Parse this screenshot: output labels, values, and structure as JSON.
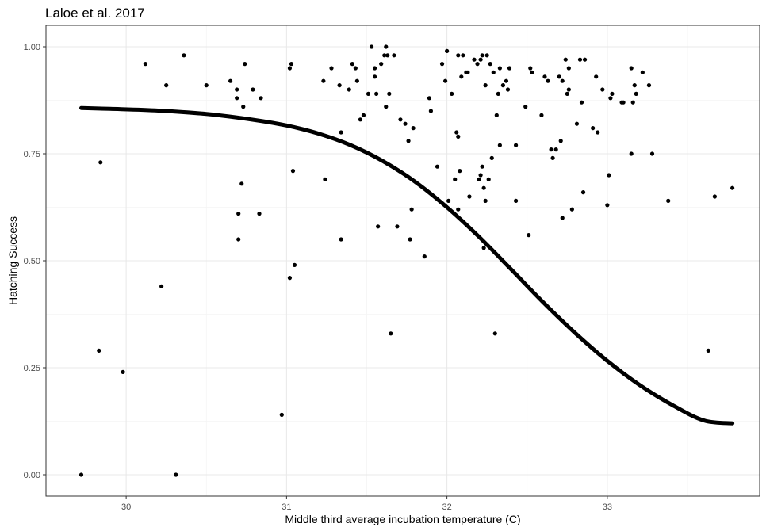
{
  "chart_data": {
    "type": "scatter",
    "title": "Laloe et al. 2017",
    "xlabel": "Middle third average incubation temperature (C)",
    "ylabel": "Hatching Success",
    "xlim": [
      29.5,
      33.95
    ],
    "ylim": [
      -0.05,
      1.05
    ],
    "x_ticks": [
      30,
      31,
      32,
      33
    ],
    "y_ticks": [
      0.0,
      0.25,
      0.5,
      0.75,
      1.0
    ],
    "x_tick_labels": [
      "30",
      "31",
      "32",
      "33"
    ],
    "y_tick_labels": [
      "0.00",
      "0.25",
      "0.50",
      "0.75",
      "1.00"
    ],
    "grid": true,
    "legend": "none",
    "colors": {
      "points": "#000000",
      "curve": "#000000",
      "grid_major": "#e8e8e8",
      "grid_minor": "#f4f4f4",
      "panel_border": "#333333",
      "tick_label": "#4d4d4d"
    },
    "points": [
      {
        "x": 29.72,
        "y": 0.0
      },
      {
        "x": 29.83,
        "y": 0.29
      },
      {
        "x": 29.84,
        "y": 0.73
      },
      {
        "x": 29.98,
        "y": 0.24
      },
      {
        "x": 30.12,
        "y": 0.96
      },
      {
        "x": 30.22,
        "y": 0.44
      },
      {
        "x": 30.25,
        "y": 0.91
      },
      {
        "x": 30.31,
        "y": 0.0
      },
      {
        "x": 30.36,
        "y": 0.98
      },
      {
        "x": 30.5,
        "y": 0.91
      },
      {
        "x": 30.65,
        "y": 0.92
      },
      {
        "x": 30.69,
        "y": 0.9
      },
      {
        "x": 30.69,
        "y": 0.88
      },
      {
        "x": 30.7,
        "y": 0.61
      },
      {
        "x": 30.7,
        "y": 0.55
      },
      {
        "x": 30.72,
        "y": 0.68
      },
      {
        "x": 30.73,
        "y": 0.86
      },
      {
        "x": 30.74,
        "y": 0.96
      },
      {
        "x": 30.79,
        "y": 0.9
      },
      {
        "x": 30.83,
        "y": 0.61
      },
      {
        "x": 30.84,
        "y": 0.88
      },
      {
        "x": 30.97,
        "y": 0.14
      },
      {
        "x": 31.02,
        "y": 0.95
      },
      {
        "x": 31.03,
        "y": 0.96
      },
      {
        "x": 31.02,
        "y": 0.46
      },
      {
        "x": 31.04,
        "y": 0.71
      },
      {
        "x": 31.05,
        "y": 0.49
      },
      {
        "x": 31.23,
        "y": 0.92
      },
      {
        "x": 31.24,
        "y": 0.69
      },
      {
        "x": 31.28,
        "y": 0.95
      },
      {
        "x": 31.33,
        "y": 0.91
      },
      {
        "x": 31.34,
        "y": 0.8
      },
      {
        "x": 31.34,
        "y": 0.55
      },
      {
        "x": 31.39,
        "y": 0.9
      },
      {
        "x": 31.41,
        "y": 0.96
      },
      {
        "x": 31.43,
        "y": 0.95
      },
      {
        "x": 31.44,
        "y": 0.92
      },
      {
        "x": 31.46,
        "y": 0.83
      },
      {
        "x": 31.48,
        "y": 0.84
      },
      {
        "x": 31.51,
        "y": 0.89
      },
      {
        "x": 31.53,
        "y": 1.0
      },
      {
        "x": 31.55,
        "y": 0.93
      },
      {
        "x": 31.55,
        "y": 0.95
      },
      {
        "x": 31.56,
        "y": 0.89
      },
      {
        "x": 31.57,
        "y": 0.58
      },
      {
        "x": 31.59,
        "y": 0.96
      },
      {
        "x": 31.61,
        "y": 0.98
      },
      {
        "x": 31.62,
        "y": 1.0
      },
      {
        "x": 31.62,
        "y": 0.86
      },
      {
        "x": 31.63,
        "y": 0.98
      },
      {
        "x": 31.64,
        "y": 0.89
      },
      {
        "x": 31.65,
        "y": 0.33
      },
      {
        "x": 31.67,
        "y": 0.98
      },
      {
        "x": 31.69,
        "y": 0.58
      },
      {
        "x": 31.71,
        "y": 0.83
      },
      {
        "x": 31.74,
        "y": 0.82
      },
      {
        "x": 31.76,
        "y": 0.78
      },
      {
        "x": 31.77,
        "y": 0.55
      },
      {
        "x": 31.78,
        "y": 0.62
      },
      {
        "x": 31.79,
        "y": 0.81
      },
      {
        "x": 31.86,
        "y": 0.51
      },
      {
        "x": 31.89,
        "y": 0.88
      },
      {
        "x": 31.9,
        "y": 0.85
      },
      {
        "x": 31.94,
        "y": 0.72
      },
      {
        "x": 31.97,
        "y": 0.96
      },
      {
        "x": 31.99,
        "y": 0.92
      },
      {
        "x": 32.0,
        "y": 0.99
      },
      {
        "x": 32.01,
        "y": 0.64
      },
      {
        "x": 32.03,
        "y": 0.89
      },
      {
        "x": 32.05,
        "y": 0.69
      },
      {
        "x": 32.06,
        "y": 0.8
      },
      {
        "x": 32.07,
        "y": 0.79
      },
      {
        "x": 32.07,
        "y": 0.62
      },
      {
        "x": 32.07,
        "y": 0.98
      },
      {
        "x": 32.08,
        "y": 0.71
      },
      {
        "x": 32.09,
        "y": 0.93
      },
      {
        "x": 32.1,
        "y": 0.98
      },
      {
        "x": 32.12,
        "y": 0.94
      },
      {
        "x": 32.13,
        "y": 0.94
      },
      {
        "x": 32.14,
        "y": 0.65
      },
      {
        "x": 32.17,
        "y": 0.97
      },
      {
        "x": 32.19,
        "y": 0.96
      },
      {
        "x": 32.2,
        "y": 0.69
      },
      {
        "x": 32.21,
        "y": 0.7
      },
      {
        "x": 32.21,
        "y": 0.97
      },
      {
        "x": 32.22,
        "y": 0.72
      },
      {
        "x": 32.22,
        "y": 0.98
      },
      {
        "x": 32.23,
        "y": 0.53
      },
      {
        "x": 32.23,
        "y": 0.67
      },
      {
        "x": 32.24,
        "y": 0.64
      },
      {
        "x": 32.24,
        "y": 0.91
      },
      {
        "x": 32.25,
        "y": 0.98
      },
      {
        "x": 32.26,
        "y": 0.69
      },
      {
        "x": 32.27,
        "y": 0.96
      },
      {
        "x": 32.28,
        "y": 0.74
      },
      {
        "x": 32.29,
        "y": 0.94
      },
      {
        "x": 32.3,
        "y": 0.33
      },
      {
        "x": 32.31,
        "y": 0.84
      },
      {
        "x": 32.32,
        "y": 0.89
      },
      {
        "x": 32.33,
        "y": 0.95
      },
      {
        "x": 32.33,
        "y": 0.77
      },
      {
        "x": 32.35,
        "y": 0.91
      },
      {
        "x": 32.37,
        "y": 0.92
      },
      {
        "x": 32.38,
        "y": 0.9
      },
      {
        "x": 32.39,
        "y": 0.95
      },
      {
        "x": 32.43,
        "y": 0.77
      },
      {
        "x": 32.43,
        "y": 0.64
      },
      {
        "x": 32.49,
        "y": 0.86
      },
      {
        "x": 32.51,
        "y": 0.56
      },
      {
        "x": 32.52,
        "y": 0.95
      },
      {
        "x": 32.53,
        "y": 0.94
      },
      {
        "x": 32.59,
        "y": 0.84
      },
      {
        "x": 32.61,
        "y": 0.93
      },
      {
        "x": 32.63,
        "y": 0.92
      },
      {
        "x": 32.65,
        "y": 0.76
      },
      {
        "x": 32.66,
        "y": 0.74
      },
      {
        "x": 32.68,
        "y": 0.76
      },
      {
        "x": 32.7,
        "y": 0.93
      },
      {
        "x": 32.71,
        "y": 0.78
      },
      {
        "x": 32.72,
        "y": 0.6
      },
      {
        "x": 32.72,
        "y": 0.92
      },
      {
        "x": 32.74,
        "y": 0.97
      },
      {
        "x": 32.75,
        "y": 0.89
      },
      {
        "x": 32.76,
        "y": 0.9
      },
      {
        "x": 32.76,
        "y": 0.95
      },
      {
        "x": 32.78,
        "y": 0.62
      },
      {
        "x": 32.81,
        "y": 0.82
      },
      {
        "x": 32.83,
        "y": 0.97
      },
      {
        "x": 32.84,
        "y": 0.87
      },
      {
        "x": 32.85,
        "y": 0.66
      },
      {
        "x": 32.86,
        "y": 0.97
      },
      {
        "x": 32.91,
        "y": 0.81
      },
      {
        "x": 32.93,
        "y": 0.93
      },
      {
        "x": 32.94,
        "y": 0.8
      },
      {
        "x": 32.97,
        "y": 0.9
      },
      {
        "x": 33.0,
        "y": 0.63
      },
      {
        "x": 33.01,
        "y": 0.7
      },
      {
        "x": 33.02,
        "y": 0.88
      },
      {
        "x": 33.03,
        "y": 0.89
      },
      {
        "x": 33.09,
        "y": 0.87
      },
      {
        "x": 33.1,
        "y": 0.87
      },
      {
        "x": 33.15,
        "y": 0.95
      },
      {
        "x": 33.15,
        "y": 0.75
      },
      {
        "x": 33.16,
        "y": 0.87
      },
      {
        "x": 33.17,
        "y": 0.91
      },
      {
        "x": 33.18,
        "y": 0.89
      },
      {
        "x": 33.22,
        "y": 0.94
      },
      {
        "x": 33.26,
        "y": 0.91
      },
      {
        "x": 33.28,
        "y": 0.75
      },
      {
        "x": 33.38,
        "y": 0.64
      },
      {
        "x": 33.63,
        "y": 0.29
      },
      {
        "x": 33.67,
        "y": 0.65
      },
      {
        "x": 33.78,
        "y": 0.67
      }
    ],
    "fit_curve": {
      "type": "logistic",
      "x": [
        29.72,
        29.9,
        30.2,
        30.5,
        30.8,
        31.0,
        31.2,
        31.4,
        31.6,
        31.8,
        32.0,
        32.2,
        32.4,
        32.6,
        32.8,
        33.0,
        33.2,
        33.4,
        33.6,
        33.78
      ],
      "y": [
        0.857,
        0.855,
        0.851,
        0.843,
        0.829,
        0.816,
        0.797,
        0.77,
        0.733,
        0.685,
        0.625,
        0.556,
        0.48,
        0.403,
        0.331,
        0.266,
        0.21,
        0.164,
        0.127,
        0.12
      ]
    }
  }
}
